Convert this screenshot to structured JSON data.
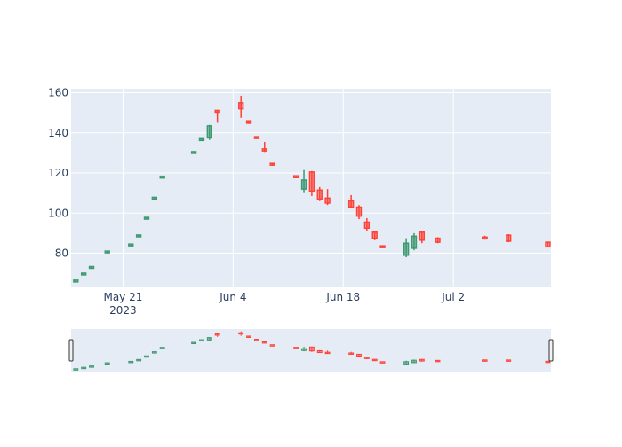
{
  "chart_data": {
    "type": "candlestick",
    "title": "",
    "xlabel": "",
    "ylabel": "",
    "x_range": [
      "2023-05-15",
      "2023-07-14"
    ],
    "ylim": [
      63,
      162
    ],
    "y_ticks": [
      80,
      100,
      120,
      140,
      160
    ],
    "x_ticks": [
      {
        "date": "2023-05-21",
        "label": "May 21",
        "sublabel": "2023"
      },
      {
        "date": "2023-06-04",
        "label": "Jun 4",
        "sublabel": ""
      },
      {
        "date": "2023-06-18",
        "label": "Jun 18",
        "sublabel": ""
      },
      {
        "date": "2023-07-02",
        "label": "Jul 2",
        "sublabel": ""
      }
    ],
    "grid": true,
    "rangeslider": true,
    "colors": {
      "increasing": "#3d9970",
      "decreasing": "#ff4136",
      "plot_bg": "#e5ecf6",
      "grid": "#ffffff",
      "tick_text": "#2a3f5f"
    },
    "candles": [
      {
        "date": "2023-05-15",
        "open": 66.0,
        "high": 66.3,
        "low": 65.7,
        "close": 66.3
      },
      {
        "date": "2023-05-16",
        "open": 69.5,
        "high": 69.8,
        "low": 69.2,
        "close": 69.8
      },
      {
        "date": "2023-05-17",
        "open": 72.8,
        "high": 73.1,
        "low": 72.5,
        "close": 73.1
      },
      {
        "date": "2023-05-19",
        "open": 80.5,
        "high": 80.8,
        "low": 80.2,
        "close": 80.8
      },
      {
        "date": "2023-05-22",
        "open": 84.0,
        "high": 84.3,
        "low": 83.7,
        "close": 84.3
      },
      {
        "date": "2023-05-23",
        "open": 88.5,
        "high": 88.8,
        "low": 88.2,
        "close": 88.8
      },
      {
        "date": "2023-05-24",
        "open": 97.3,
        "high": 97.6,
        "low": 97.0,
        "close": 97.6
      },
      {
        "date": "2023-05-25",
        "open": 107.3,
        "high": 107.6,
        "low": 107.0,
        "close": 107.6
      },
      {
        "date": "2023-05-26",
        "open": 117.8,
        "high": 118.1,
        "low": 117.5,
        "close": 118.1
      },
      {
        "date": "2023-05-30",
        "open": 130.0,
        "high": 130.4,
        "low": 129.7,
        "close": 130.4
      },
      {
        "date": "2023-05-31",
        "open": 136.5,
        "high": 136.8,
        "low": 136.2,
        "close": 136.8
      },
      {
        "date": "2023-06-01",
        "open": 137.5,
        "high": 144.0,
        "low": 136.5,
        "close": 143.5
      },
      {
        "date": "2023-06-02",
        "open": 151.0,
        "high": 151.3,
        "low": 145.0,
        "close": 150.5
      },
      {
        "date": "2023-06-05",
        "open": 155.0,
        "high": 158.5,
        "low": 147.5,
        "close": 152.0
      },
      {
        "date": "2023-06-06",
        "open": 146.0,
        "high": 146.3,
        "low": 144.5,
        "close": 144.8
      },
      {
        "date": "2023-06-07",
        "open": 137.8,
        "high": 138.0,
        "low": 137.2,
        "close": 137.5
      },
      {
        "date": "2023-06-08",
        "open": 132.0,
        "high": 135.5,
        "low": 130.5,
        "close": 131.0
      },
      {
        "date": "2023-06-09",
        "open": 124.5,
        "high": 124.8,
        "low": 124.0,
        "close": 124.2
      },
      {
        "date": "2023-06-12",
        "open": 118.3,
        "high": 118.5,
        "low": 117.8,
        "close": 118.0
      },
      {
        "date": "2023-06-13",
        "open": 112.0,
        "high": 121.5,
        "low": 110.0,
        "close": 116.5
      },
      {
        "date": "2023-06-14",
        "open": 120.5,
        "high": 121.0,
        "low": 108.5,
        "close": 111.0
      },
      {
        "date": "2023-06-15",
        "open": 111.5,
        "high": 113.0,
        "low": 106.0,
        "close": 107.0
      },
      {
        "date": "2023-06-16",
        "open": 107.5,
        "high": 112.0,
        "low": 104.0,
        "close": 105.0
      },
      {
        "date": "2023-06-19",
        "open": 106.0,
        "high": 109.0,
        "low": 102.5,
        "close": 103.0
      },
      {
        "date": "2023-06-20",
        "open": 103.0,
        "high": 104.0,
        "low": 97.0,
        "close": 98.5
      },
      {
        "date": "2023-06-21",
        "open": 95.5,
        "high": 97.5,
        "low": 91.0,
        "close": 92.5
      },
      {
        "date": "2023-06-22",
        "open": 90.5,
        "high": 91.0,
        "low": 86.5,
        "close": 87.5
      },
      {
        "date": "2023-06-23",
        "open": 83.5,
        "high": 84.0,
        "low": 82.8,
        "close": 83.0
      },
      {
        "date": "2023-06-26",
        "open": 79.0,
        "high": 87.5,
        "low": 78.0,
        "close": 85.0
      },
      {
        "date": "2023-06-27",
        "open": 82.5,
        "high": 90.0,
        "low": 81.5,
        "close": 88.5
      },
      {
        "date": "2023-06-28",
        "open": 90.5,
        "high": 91.0,
        "low": 85.0,
        "close": 86.5
      },
      {
        "date": "2023-06-30",
        "open": 87.5,
        "high": 88.0,
        "low": 85.0,
        "close": 85.5
      },
      {
        "date": "2023-07-06",
        "open": 88.0,
        "high": 88.7,
        "low": 86.8,
        "close": 87.2
      },
      {
        "date": "2023-07-09",
        "open": 89.0,
        "high": 89.5,
        "low": 85.5,
        "close": 86.0
      },
      {
        "date": "2023-07-14",
        "open": 85.5,
        "high": 85.7,
        "low": 83.0,
        "close": 83.2
      }
    ]
  }
}
